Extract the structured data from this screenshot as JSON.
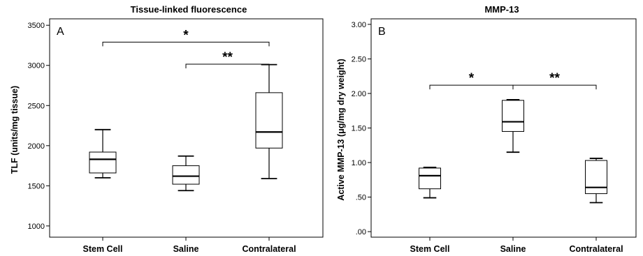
{
  "chart_data": [
    {
      "type": "box",
      "panel_label": "A",
      "title": "Tissue-linked fluorescence",
      "xlabel": "",
      "ylabel": "TLF (units/mg tissue)",
      "ylim": [
        860,
        3580
      ],
      "yticks": [
        1000,
        1500,
        2000,
        2500,
        3000,
        3500
      ],
      "ytick_labels": [
        "1000",
        "1500",
        "2000",
        "2500",
        "3000",
        "3500"
      ],
      "categories": [
        "Stem Cell",
        "Saline",
        "Contralateral"
      ],
      "boxes": [
        {
          "min": 1600,
          "q1": 1660,
          "median": 1830,
          "q3": 1920,
          "max": 2200
        },
        {
          "min": 1440,
          "q1": 1520,
          "median": 1620,
          "q3": 1750,
          "max": 1870
        },
        {
          "min": 1590,
          "q1": 1970,
          "median": 2170,
          "q3": 2660,
          "max": 3010
        }
      ],
      "significance": [
        {
          "from": 0,
          "to": 2,
          "y": 3290,
          "label": "*"
        },
        {
          "from": 1,
          "to": 2,
          "y": 3015,
          "label": "**"
        }
      ]
    },
    {
      "type": "box",
      "panel_label": "B",
      "title": "MMP-13",
      "xlabel": "",
      "ylabel": "Active MMP-13 (μg/mg dry weight)",
      "ylim": [
        -0.08,
        3.08
      ],
      "yticks": [
        0,
        0.5,
        1.0,
        1.5,
        2.0,
        2.5,
        3.0
      ],
      "ytick_labels": [
        ".00",
        ".50",
        "1.00",
        "1.50",
        "2.00",
        "2.50",
        "3.00"
      ],
      "categories": [
        "Stem Cell",
        "Saline",
        "Contralateral"
      ],
      "boxes": [
        {
          "min": 0.49,
          "q1": 0.62,
          "median": 0.81,
          "q3": 0.92,
          "max": 0.93
        },
        {
          "min": 1.15,
          "q1": 1.45,
          "median": 1.59,
          "q3": 1.9,
          "max": 1.91
        },
        {
          "min": 0.42,
          "q1": 0.55,
          "median": 0.64,
          "q3": 1.03,
          "max": 1.06
        }
      ],
      "significance": [
        {
          "from": 0,
          "to": 1,
          "y": 2.12,
          "label": "*"
        },
        {
          "from": 1,
          "to": 2,
          "y": 2.12,
          "label": "**"
        }
      ]
    }
  ]
}
